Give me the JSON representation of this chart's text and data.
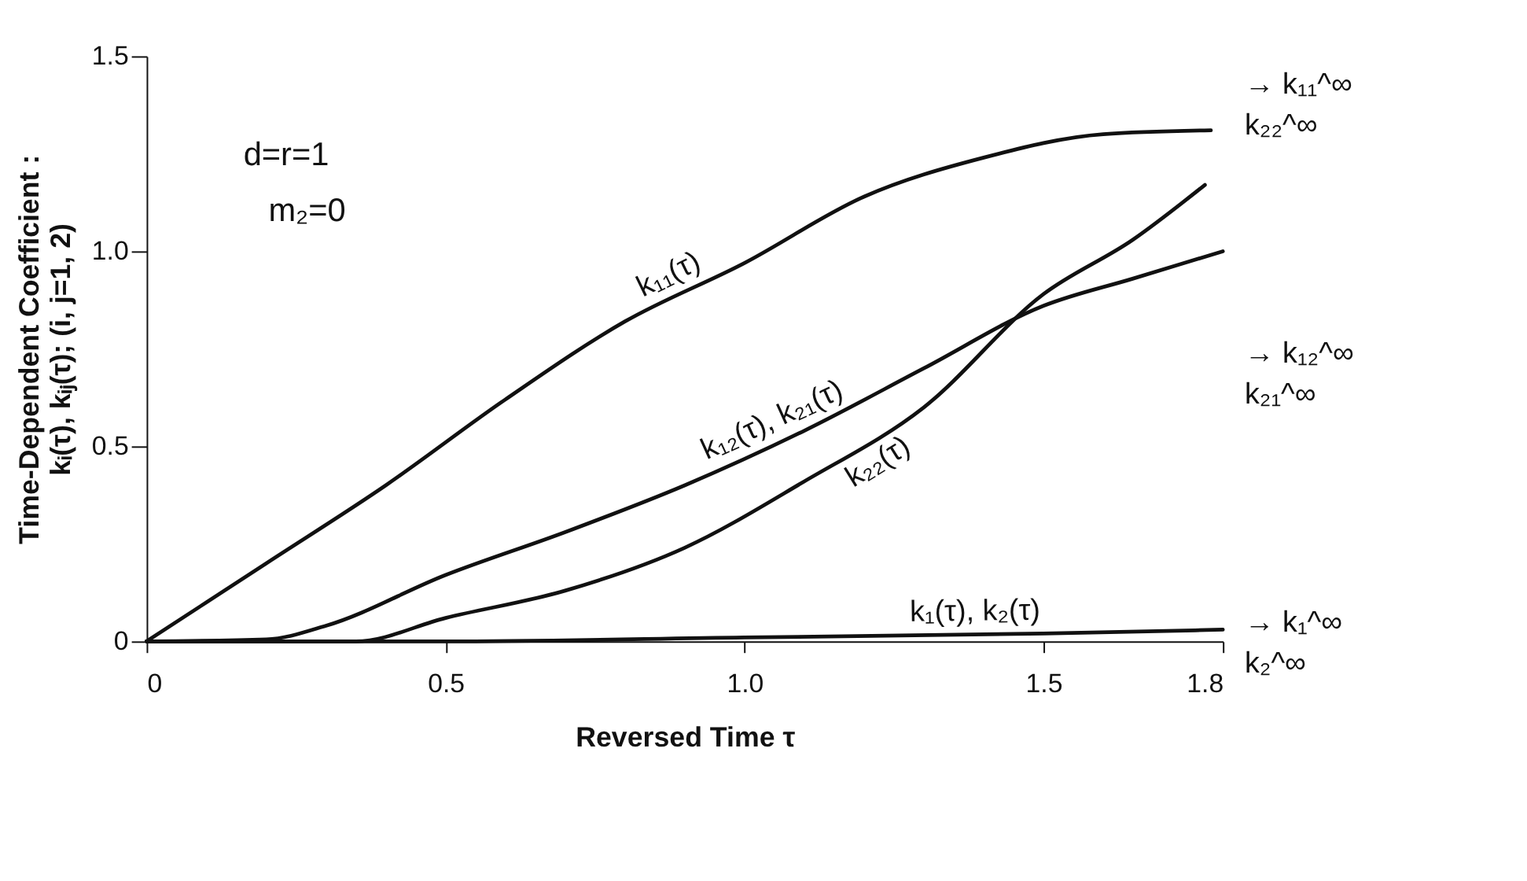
{
  "chart_data": {
    "type": "line",
    "xlabel": "Reversed Time τ",
    "ylabel": "Time-Dependent Coefficient :\nkᵢ(τ), kᵢⱼ(τ); (i, j=1, 2)",
    "xlim": [
      0,
      1.8
    ],
    "ylim": [
      0,
      1.5
    ],
    "xticks": [
      0,
      0.5,
      {
        "value": 1,
        "label": "1.0"
      },
      1.5,
      1.8
    ],
    "yticks": [
      0,
      0.5,
      {
        "value": 1,
        "label": "1.0"
      },
      1.5
    ],
    "grid": false,
    "legend": false,
    "marker": "none",
    "line_style": "solid",
    "series": [
      {
        "name": "k₁₁(τ)",
        "color": "#111111",
        "x": [
          0,
          0.2,
          0.4,
          0.6,
          0.8,
          1.0,
          1.2,
          1.4,
          1.6,
          1.78
        ],
        "values": [
          0,
          0.2,
          0.4,
          0.62,
          0.82,
          0.97,
          1.14,
          1.24,
          1.3,
          1.31
        ]
      },
      {
        "name": "k₁₂(τ), k₂₁(τ)",
        "color": "#111111",
        "x": [
          0,
          0.2,
          0.3,
          0.5,
          0.7,
          0.9,
          1.1,
          1.3,
          1.5,
          1.65,
          1.8
        ],
        "values": [
          0,
          0.005,
          0.04,
          0.17,
          0.28,
          0.4,
          0.54,
          0.7,
          0.86,
          0.93,
          1.0
        ]
      },
      {
        "name": "k₂₂(τ)",
        "color": "#111111",
        "x": [
          0,
          0.35,
          0.5,
          0.7,
          0.9,
          1.1,
          1.3,
          1.5,
          1.65,
          1.77
        ],
        "values": [
          0,
          0.0,
          0.06,
          0.13,
          0.24,
          0.41,
          0.6,
          0.89,
          1.03,
          1.17
        ]
      },
      {
        "name": "k₁(τ), k₂(τ)",
        "color": "#111111",
        "x": [
          0,
          0.5,
          1.0,
          1.5,
          1.8
        ],
        "values": [
          0,
          0.0,
          0.01,
          0.02,
          0.03
        ]
      }
    ],
    "annotations": [
      "d=r=1",
      "m₂=0",
      "→ k₁₁^∞",
      "k₂₂^∞",
      "→ k₁₂^∞",
      "k₂₁^∞",
      "→ k₁^∞",
      "k₂^∞"
    ]
  }
}
